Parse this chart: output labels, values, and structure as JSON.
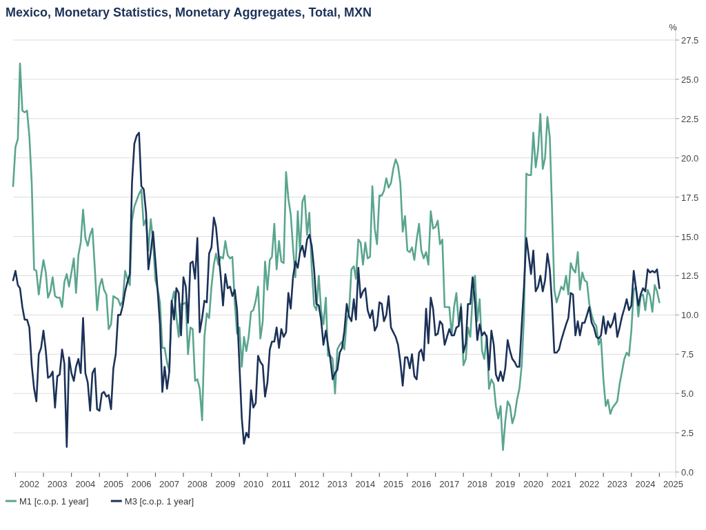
{
  "chart_data": {
    "type": "line",
    "title": "Mexico, Monetary Statistics, Monetary Aggregates, Total, MXN",
    "ylabel": "%",
    "x": [
      "2001-12",
      "2002-01",
      "2002-02",
      "2002-03",
      "2002-04",
      "2002-05",
      "2002-06",
      "2002-07",
      "2002-08",
      "2002-09",
      "2002-10",
      "2002-11",
      "2002-12",
      "2003-01",
      "2003-02",
      "2003-03",
      "2003-04",
      "2003-05",
      "2003-06",
      "2003-07",
      "2003-08",
      "2003-09",
      "2003-10",
      "2003-11",
      "2003-12",
      "2004-01",
      "2004-02",
      "2004-03",
      "2004-04",
      "2004-05",
      "2004-06",
      "2004-07",
      "2004-08",
      "2004-09",
      "2004-10",
      "2004-11",
      "2004-12",
      "2005-01",
      "2005-02",
      "2005-03",
      "2005-04",
      "2005-05",
      "2005-06",
      "2005-07",
      "2005-08",
      "2005-09",
      "2005-10",
      "2005-11",
      "2005-12",
      "2006-01",
      "2006-02",
      "2006-03",
      "2006-04",
      "2006-05",
      "2006-06",
      "2006-07",
      "2006-08",
      "2006-09",
      "2006-10",
      "2006-11",
      "2006-12",
      "2007-01",
      "2007-02",
      "2007-03",
      "2007-04",
      "2007-05",
      "2007-06",
      "2007-07",
      "2007-08",
      "2007-09",
      "2007-10",
      "2007-11",
      "2007-12",
      "2008-01",
      "2008-02",
      "2008-03",
      "2008-04",
      "2008-05",
      "2008-06",
      "2008-07",
      "2008-08",
      "2008-09",
      "2008-10",
      "2008-11",
      "2008-12",
      "2009-01",
      "2009-02",
      "2009-03",
      "2009-04",
      "2009-05",
      "2009-06",
      "2009-07",
      "2009-08",
      "2009-09",
      "2009-10",
      "2009-11",
      "2009-12",
      "2010-01",
      "2010-02",
      "2010-03",
      "2010-04",
      "2010-05",
      "2010-06",
      "2010-07",
      "2010-08",
      "2010-09",
      "2010-10",
      "2010-11",
      "2010-12",
      "2011-01",
      "2011-02",
      "2011-03",
      "2011-04",
      "2011-05",
      "2011-06",
      "2011-07",
      "2011-08",
      "2011-09",
      "2011-10",
      "2011-11",
      "2011-12",
      "2012-01",
      "2012-02",
      "2012-03",
      "2012-04",
      "2012-05",
      "2012-06",
      "2012-07",
      "2012-08",
      "2012-09",
      "2012-10",
      "2012-11",
      "2012-12",
      "2013-01",
      "2013-02",
      "2013-03",
      "2013-04",
      "2013-05",
      "2013-06",
      "2013-07",
      "2013-08",
      "2013-09",
      "2013-10",
      "2013-11",
      "2013-12",
      "2014-01",
      "2014-02",
      "2014-03",
      "2014-04",
      "2014-05",
      "2014-06",
      "2014-07",
      "2014-08",
      "2014-09",
      "2014-10",
      "2014-11",
      "2014-12",
      "2015-01",
      "2015-02",
      "2015-03",
      "2015-04",
      "2015-05",
      "2015-06",
      "2015-07",
      "2015-08",
      "2015-09",
      "2015-10",
      "2015-11",
      "2015-12",
      "2016-01",
      "2016-02",
      "2016-03",
      "2016-04",
      "2016-05",
      "2016-06",
      "2016-07",
      "2016-08",
      "2016-09",
      "2016-10",
      "2016-11",
      "2016-12",
      "2017-01",
      "2017-02",
      "2017-03",
      "2017-04",
      "2017-05",
      "2017-06",
      "2017-07",
      "2017-08",
      "2017-09",
      "2017-10",
      "2017-11",
      "2017-12",
      "2018-01",
      "2018-02",
      "2018-03",
      "2018-04",
      "2018-05",
      "2018-06",
      "2018-07",
      "2018-08",
      "2018-09",
      "2018-10",
      "2018-11",
      "2018-12",
      "2019-01",
      "2019-02",
      "2019-03",
      "2019-04",
      "2019-05",
      "2019-06",
      "2019-07",
      "2019-08",
      "2019-09",
      "2019-10",
      "2019-11",
      "2019-12",
      "2020-01",
      "2020-02",
      "2020-03",
      "2020-04",
      "2020-05",
      "2020-06",
      "2020-07",
      "2020-08",
      "2020-09",
      "2020-10",
      "2020-11",
      "2020-12",
      "2021-01",
      "2021-02",
      "2021-03",
      "2021-04",
      "2021-05",
      "2021-06",
      "2021-07",
      "2021-08",
      "2021-09",
      "2021-10",
      "2021-11",
      "2021-12",
      "2022-01",
      "2022-02",
      "2022-03",
      "2022-04",
      "2022-05",
      "2022-06",
      "2022-07",
      "2022-08",
      "2022-09",
      "2022-10",
      "2022-11",
      "2022-12",
      "2023-01",
      "2023-02",
      "2023-03",
      "2023-04",
      "2023-05",
      "2023-06",
      "2023-07",
      "2023-08",
      "2023-09",
      "2023-10",
      "2023-11",
      "2023-12",
      "2024-01",
      "2024-02",
      "2024-03",
      "2024-04",
      "2024-05",
      "2024-06",
      "2024-07",
      "2024-08",
      "2024-09",
      "2024-10",
      "2024-11",
      "2024-12",
      "2025-01"
    ],
    "series": [
      {
        "name": "M1 [c.o.p. 1 year]",
        "color": "#5aa58f",
        "values": [
          18.2,
          20.7,
          21.2,
          26.0,
          23.0,
          22.9,
          23.0,
          21.4,
          18.4,
          12.9,
          12.8,
          11.3,
          12.5,
          13.5,
          12.7,
          11.1,
          11.5,
          12.4,
          11.2,
          11.1,
          11.1,
          10.5,
          12.1,
          12.6,
          11.8,
          12.7,
          13.6,
          11.4,
          13.8,
          14.6,
          16.7,
          14.9,
          14.4,
          15.1,
          15.5,
          13.0,
          10.3,
          11.8,
          12.3,
          11.6,
          11.3,
          9.1,
          9.4,
          11.2,
          11.1,
          11.0,
          10.6,
          10.9,
          12.8,
          12.3,
          11.9,
          16.0,
          16.9,
          17.3,
          17.7,
          18.0,
          15.7,
          16.1,
          14.1,
          16.1,
          14.7,
          12.2,
          11.6,
          10.8,
          7.9,
          7.9,
          7.0,
          6.4,
          10.8,
          11.5,
          9.9,
          8.6,
          10.7,
          10.7,
          10.8,
          7.5,
          9.2,
          9.1,
          5.8,
          5.9,
          5.3,
          3.3,
          8.6,
          10.1,
          9.8,
          11.8,
          13.2,
          13.9,
          13.2,
          13.7,
          13.6,
          14.7,
          13.8,
          13.6,
          13.7,
          10.8,
          8.8,
          9.2,
          6.7,
          8.6,
          7.7,
          8.6,
          10.2,
          10.3,
          10.9,
          11.8,
          8.5,
          9.6,
          13.4,
          11.6,
          13.5,
          13.7,
          15.8,
          12.9,
          14.7,
          13.4,
          13.3,
          19.1,
          17.4,
          16.4,
          14.3,
          12.4,
          16.6,
          14.0,
          17.2,
          17.6,
          15.1,
          16.5,
          13.0,
          10.6,
          10.3,
          12.5,
          10.3,
          9.4,
          11.1,
          7.4,
          7.4,
          7.2,
          5.0,
          7.8,
          8.1,
          8.3,
          7.8,
          9.7,
          10.2,
          12.9,
          13.1,
          12.3,
          14.8,
          14.6,
          13.2,
          14.6,
          13.6,
          13.7,
          18.2,
          15.5,
          14.5,
          17.6,
          17.6,
          17.9,
          18.7,
          18.1,
          18.4,
          19.3,
          19.9,
          19.5,
          18.4,
          15.3,
          16.3,
          14.1,
          14.0,
          14.3,
          13.5,
          14.8,
          15.8,
          14.1,
          13.6,
          14.0,
          13.2,
          16.6,
          15.5,
          15.6,
          16.0,
          14.5,
          14.8,
          10.5,
          10.5,
          10.5,
          8.7,
          10.5,
          11.4,
          9.4,
          10.7,
          6.8,
          7.2,
          9.2,
          8.6,
          11.2,
          12.5,
          9.6,
          11.0,
          7.7,
          7.2,
          8.7,
          5.3,
          5.9,
          5.6,
          4.2,
          3.4,
          4.2,
          1.4,
          3.2,
          4.5,
          4.2,
          3.1,
          3.6,
          4.6,
          5.3,
          6.8,
          9.9,
          19.0,
          18.9,
          18.9,
          21.6,
          19.4,
          20.5,
          22.8,
          19.3,
          20.0,
          22.6,
          21.3,
          16.9,
          11.6,
          10.8,
          11.3,
          11.8,
          11.6,
          12.5,
          11.3,
          13.3,
          12.9,
          12.7,
          14.0,
          11.6,
          12.7,
          12.2,
          12.1,
          10.7,
          10.0,
          9.5,
          9.3,
          8.1,
          8.5,
          5.9,
          4.2,
          4.6,
          3.7,
          4.1,
          4.3,
          4.5,
          5.6,
          6.4,
          7.2,
          7.6,
          7.4,
          9.0,
          11.6,
          11.8,
          9.9,
          11.2,
          11.3,
          10.3,
          11.6,
          11.2,
          10.2,
          11.9,
          11.5,
          10.8
        ]
      },
      {
        "name": "M3 [c.o.p. 1 year]",
        "color": "#1b3158",
        "values": [
          12.2,
          12.8,
          11.9,
          11.7,
          10.5,
          9.7,
          9.7,
          9.2,
          6.8,
          5.3,
          4.5,
          7.5,
          7.9,
          9.0,
          7.7,
          6.0,
          6.1,
          6.4,
          4.1,
          6.1,
          6.2,
          7.8,
          6.9,
          1.6,
          7.3,
          6.3,
          5.8,
          6.7,
          7.2,
          6.3,
          9.8,
          6.3,
          5.7,
          3.9,
          6.3,
          6.6,
          4.0,
          3.9,
          5.0,
          5.1,
          4.8,
          4.9,
          4.0,
          6.6,
          7.5,
          10.0,
          10.0,
          10.6,
          11.5,
          12.1,
          12.6,
          18.4,
          20.9,
          21.4,
          21.6,
          18.2,
          18.0,
          16.5,
          12.9,
          14.0,
          15.3,
          13.4,
          11.4,
          9.4,
          5.1,
          6.7,
          5.3,
          6.4,
          10.9,
          9.7,
          11.7,
          11.4,
          8.7,
          12.4,
          11.8,
          9.5,
          13.3,
          13.4,
          12.3,
          14.9,
          8.9,
          9.8,
          10.9,
          10.8,
          13.9,
          14.3,
          16.2,
          15.6,
          14.0,
          12.5,
          10.6,
          12.6,
          11.7,
          11.8,
          11.2,
          11.6,
          10.3,
          6.8,
          3.4,
          1.8,
          2.5,
          2.2,
          5.2,
          4.1,
          4.4,
          7.4,
          7.0,
          6.8,
          4.8,
          5.7,
          7.8,
          8.3,
          8.3,
          9.2,
          7.9,
          9.1,
          8.6,
          8.9,
          11.4,
          10.4,
          12.4,
          13.4,
          13.0,
          14.0,
          14.4,
          13.7,
          14.8,
          15.1,
          14.4,
          12.9,
          10.7,
          10.6,
          9.7,
          8.1,
          9.0,
          8.1,
          7.2,
          5.9,
          6.3,
          6.5,
          7.6,
          7.9,
          9.0,
          10.7,
          9.9,
          9.6,
          11.0,
          9.7,
          13.0,
          11.1,
          11.5,
          11.7,
          10.3,
          9.8,
          10.3,
          9.0,
          9.3,
          10.8,
          10.7,
          9.6,
          10.0,
          11.2,
          9.2,
          8.9,
          8.6,
          8.1,
          7.0,
          5.5,
          7.3,
          7.3,
          6.6,
          7.5,
          6.1,
          5.9,
          7.6,
          7.8,
          7.1,
          10.4,
          8.2,
          11.1,
          10.4,
          8.7,
          8.8,
          9.6,
          9.4,
          8.1,
          8.6,
          9.1,
          8.7,
          8.7,
          9.2,
          9.3,
          10.5,
          7.6,
          8.2,
          10.7,
          10.7,
          12.4,
          10.8,
          8.4,
          9.4,
          8.7,
          8.9,
          8.6,
          6.5,
          9.0,
          8.1,
          6.2,
          5.8,
          6.4,
          5.8,
          6.6,
          8.4,
          7.7,
          7.2,
          7.0,
          6.7,
          6.7,
          9.4,
          11.8,
          14.9,
          13.8,
          12.6,
          14.1,
          11.5,
          11.8,
          12.5,
          11.5,
          12.2,
          13.9,
          12.9,
          10.8,
          7.6,
          7.6,
          7.8,
          8.4,
          8.9,
          9.4,
          9.8,
          11.4,
          11.3,
          8.7,
          9.6,
          8.7,
          9.5,
          9.5,
          10.0,
          10.5,
          9.5,
          9.2,
          8.6,
          8.5,
          8.7,
          9.9,
          8.8,
          9.6,
          9.2,
          9.5,
          10.1,
          8.6,
          9.2,
          9.9,
          10.4,
          11.0,
          10.3,
          10.6,
          12.8,
          11.7,
          10.6,
          11.3,
          11.7,
          11.5,
          12.9,
          12.7,
          12.8,
          12.7,
          12.9,
          11.7
        ]
      }
    ],
    "xlim": [
      "2001-12-01",
      "2025-08-01"
    ],
    "xticks": [
      {
        "value": "2002-01-01",
        "label": null
      },
      {
        "value": "2002-07-01",
        "label": "2002"
      },
      {
        "value": "2003-01-01",
        "label": null
      },
      {
        "value": "2003-07-01",
        "label": "2003"
      },
      {
        "value": "2004-01-01",
        "label": null
      },
      {
        "value": "2004-07-01",
        "label": "2004"
      },
      {
        "value": "2005-01-01",
        "label": null
      },
      {
        "value": "2005-07-01",
        "label": "2005"
      },
      {
        "value": "2006-01-01",
        "label": null
      },
      {
        "value": "2006-07-01",
        "label": "2006"
      },
      {
        "value": "2007-01-01",
        "label": null
      },
      {
        "value": "2007-07-01",
        "label": "2007"
      },
      {
        "value": "2008-01-01",
        "label": null
      },
      {
        "value": "2008-07-01",
        "label": "2008"
      },
      {
        "value": "2009-01-01",
        "label": null
      },
      {
        "value": "2009-07-01",
        "label": "2009"
      },
      {
        "value": "2010-01-01",
        "label": null
      },
      {
        "value": "2010-07-01",
        "label": "2010"
      },
      {
        "value": "2011-01-01",
        "label": null
      },
      {
        "value": "2011-07-01",
        "label": "2011"
      },
      {
        "value": "2012-01-01",
        "label": null
      },
      {
        "value": "2012-07-01",
        "label": "2012"
      },
      {
        "value": "2013-01-01",
        "label": null
      },
      {
        "value": "2013-07-01",
        "label": "2013"
      },
      {
        "value": "2014-01-01",
        "label": null
      },
      {
        "value": "2014-07-01",
        "label": "2014"
      },
      {
        "value": "2015-01-01",
        "label": null
      },
      {
        "value": "2015-07-01",
        "label": "2015"
      },
      {
        "value": "2016-01-01",
        "label": null
      },
      {
        "value": "2016-07-01",
        "label": "2016"
      },
      {
        "value": "2017-01-01",
        "label": null
      },
      {
        "value": "2017-07-01",
        "label": "2017"
      },
      {
        "value": "2018-01-01",
        "label": null
      },
      {
        "value": "2018-07-01",
        "label": "2018"
      },
      {
        "value": "2019-01-01",
        "label": null
      },
      {
        "value": "2019-07-01",
        "label": "2019"
      },
      {
        "value": "2020-01-01",
        "label": null
      },
      {
        "value": "2020-07-01",
        "label": "2020"
      },
      {
        "value": "2021-01-01",
        "label": null
      },
      {
        "value": "2021-07-01",
        "label": "2021"
      },
      {
        "value": "2022-01-01",
        "label": null
      },
      {
        "value": "2022-07-01",
        "label": "2022"
      },
      {
        "value": "2023-01-01",
        "label": null
      },
      {
        "value": "2023-07-01",
        "label": "2023"
      },
      {
        "value": "2024-01-01",
        "label": null
      },
      {
        "value": "2024-07-01",
        "label": "2024"
      },
      {
        "value": "2025-01-01",
        "label": null
      },
      {
        "value": "2025-07-01",
        "label": "2025"
      }
    ],
    "ylim": [
      0,
      27.5
    ],
    "yticks": [
      {
        "value": 0,
        "label": "0.0"
      },
      2.5,
      {
        "value": 5,
        "label": "5.0"
      },
      7.5,
      {
        "value": 10,
        "label": "10.0"
      },
      12.5,
      {
        "value": 15,
        "label": "15.0"
      },
      17.5,
      {
        "value": 20,
        "label": "20.0"
      },
      22.5,
      {
        "value": 25,
        "label": "25.0"
      },
      27.5
    ],
    "grid": "y",
    "legend": "bottom left",
    "line_style": "solid",
    "marker": "none"
  }
}
